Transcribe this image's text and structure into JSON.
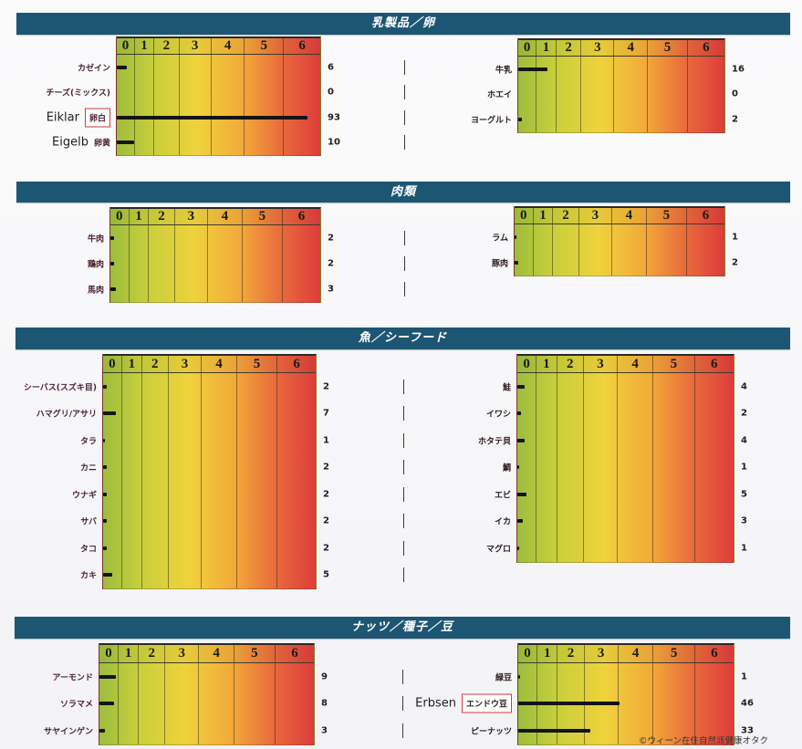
{
  "colors": {
    "section_header": "#1d5672",
    "section_header_text": "#ffffff",
    "bar": "#141414",
    "highlight_box": "#d8393b",
    "label_text": "#4a1f2d",
    "scale": [
      "#9dbd3d",
      "#c8cf3b",
      "#efd23c",
      "#f2a93a",
      "#e9683c",
      "#dd3d3b"
    ]
  },
  "watermark": "©ウィーン在住自然派健康オタク",
  "chart_data": [
    {
      "type": "bar",
      "orientation": "horizontal",
      "title": "乳製品／卵",
      "tick_labels": [
        "0",
        "1",
        "2",
        "3",
        "4",
        "5",
        "6"
      ],
      "panels": [
        {
          "categories": [
            "カゼイン",
            "チーズ(ミックス)",
            "卵白",
            "卵黄"
          ],
          "values": [
            6,
            0,
            93,
            10
          ],
          "annotations": [
            "",
            "",
            "Eiklar",
            "Eigelb"
          ],
          "highlighted": [
            false,
            false,
            true,
            false
          ]
        },
        {
          "categories": [
            "牛乳",
            "ホエイ",
            "ヨーグルト"
          ],
          "values": [
            16,
            0,
            2
          ]
        }
      ]
    },
    {
      "type": "bar",
      "orientation": "horizontal",
      "title": "肉類",
      "tick_labels": [
        "0",
        "1",
        "2",
        "3",
        "4",
        "5",
        "6"
      ],
      "panels": [
        {
          "categories": [
            "牛肉",
            "鶏肉",
            "馬肉"
          ],
          "values": [
            2,
            2,
            3
          ]
        },
        {
          "categories": [
            "ラム",
            "豚肉"
          ],
          "values": [
            1,
            2
          ]
        }
      ]
    },
    {
      "type": "bar",
      "orientation": "horizontal",
      "title": "魚／シーフード",
      "tick_labels": [
        "0",
        "1",
        "2",
        "3",
        "4",
        "5",
        "6"
      ],
      "panels": [
        {
          "categories": [
            "シーバス(スズキ目)",
            "ハマグリ/アサリ",
            "タラ",
            "カニ",
            "ウナギ",
            "サバ",
            "タコ",
            "カキ"
          ],
          "values": [
            2,
            7,
            1,
            2,
            2,
            2,
            2,
            5
          ]
        },
        {
          "categories": [
            "鮭",
            "イワシ",
            "ホタテ貝",
            "鯛",
            "エビ",
            "イカ",
            "マグロ"
          ],
          "values": [
            4,
            2,
            4,
            1,
            5,
            3,
            1
          ]
        }
      ]
    },
    {
      "type": "bar",
      "orientation": "horizontal",
      "title": "ナッツ／種子／豆",
      "tick_labels": [
        "0",
        "1",
        "2",
        "3",
        "4",
        "5",
        "6"
      ],
      "panels": [
        {
          "categories": [
            "アーモンド",
            "ソラマメ",
            "サヤインゲン"
          ],
          "values": [
            9,
            8,
            3
          ]
        },
        {
          "categories": [
            "緑豆",
            "エンドウ豆",
            "ピーナッツ"
          ],
          "values": [
            1,
            46,
            33
          ],
          "annotations": [
            "",
            "Erbsen",
            ""
          ],
          "highlighted": [
            false,
            true,
            false
          ]
        }
      ]
    }
  ]
}
